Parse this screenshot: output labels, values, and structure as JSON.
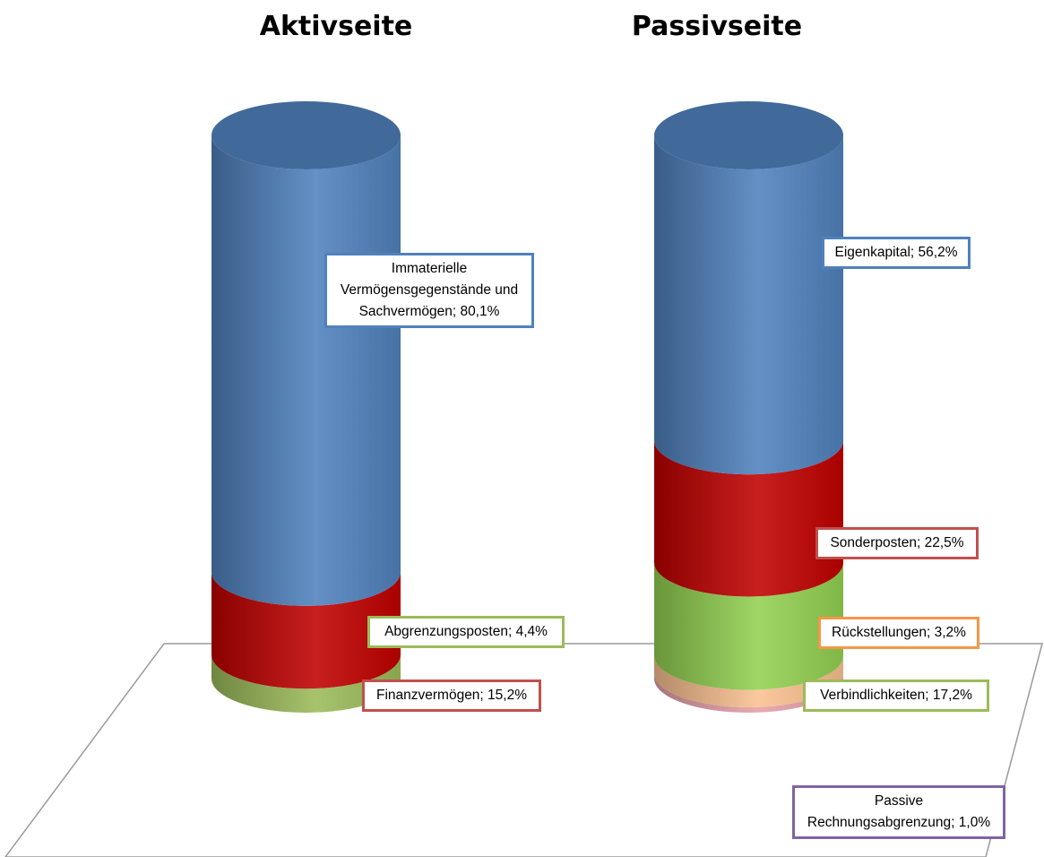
{
  "chart_data": [
    {
      "type": "stacked-cylinder",
      "title": "Aktivseite",
      "unit": "%",
      "segments": [
        {
          "name": "Abgrenzungsposten",
          "value": 4.4,
          "label": "Abgrenzungsposten; 4,4%",
          "color": "#9bbb59",
          "border": "#9bbb59"
        },
        {
          "name": "Finanzvermögen",
          "value": 15.2,
          "label": "Finanzvermögen; 15,2%",
          "color": "#c00000",
          "border": "#c0504d"
        },
        {
          "name": "Immaterielle Vermögensgegenstände und Sachvermögen",
          "value": 80.1,
          "label": "Immaterielle Vermögensgegenstände und Sachvermögen; 80,1%",
          "label_lines": [
            "Immaterielle",
            "Vermögensgegenstände und",
            "Sachvermögen; 80,1%"
          ],
          "color": "#4f81bd",
          "border": "#4f81bd"
        }
      ]
    },
    {
      "type": "stacked-cylinder",
      "title": "Passivseite",
      "unit": "%",
      "segments": [
        {
          "name": "Passive Rechnungsabgrenzung",
          "value": 1.0,
          "label": "Passive Rechnungsabgrenzung; 1,0%",
          "label_lines": [
            "Passive",
            "Rechnungsabgrenzung; 1,0%"
          ],
          "color": "#e6a0a8",
          "border": "#8064a2"
        },
        {
          "name": "Rückstellungen",
          "value": 3.2,
          "label": "Rückstellungen; 3,2%",
          "color": "#fac090",
          "border": "#f79646"
        },
        {
          "name": "Verbindlichkeiten",
          "value": 17.2,
          "label": "Verbindlichkeiten; 17,2%",
          "color": "#92d050",
          "border": "#9bbb59"
        },
        {
          "name": "Sonderposten",
          "value": 22.5,
          "label": "Sonderposten; 22,5%",
          "color": "#c00000",
          "border": "#c0504d"
        },
        {
          "name": "Eigenkapital",
          "value": 56.2,
          "label": "Eigenkapital; 56,2%",
          "color": "#4f81bd",
          "border": "#4f81bd"
        }
      ]
    }
  ]
}
